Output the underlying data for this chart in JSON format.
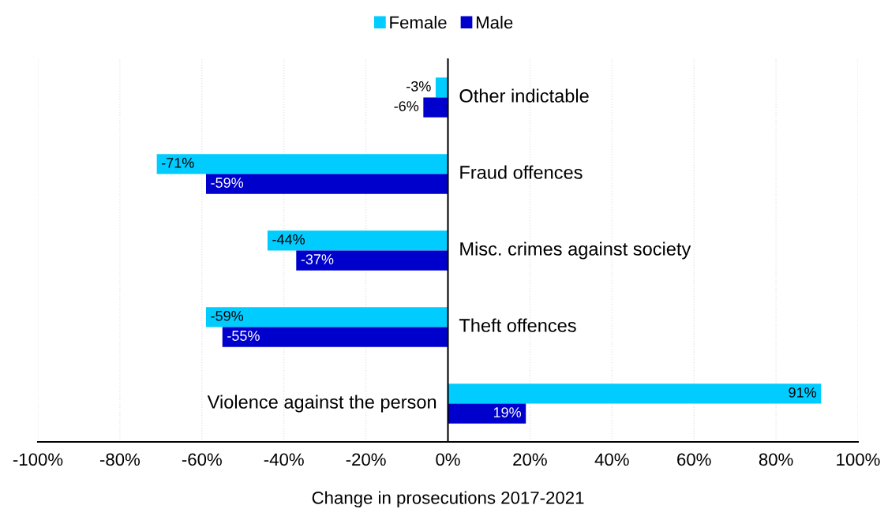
{
  "chart_data": {
    "type": "bar",
    "orientation": "horizontal",
    "xlabel": "Change in prosecutions 2017-2021",
    "categories": [
      "Other indictable",
      "Fraud offences",
      "Misc. crimes against society",
      "Theft offences",
      "Violence against the person"
    ],
    "series": [
      {
        "name": "Female",
        "color": "#00ccff",
        "values": [
          -3,
          -71,
          -44,
          -59,
          91
        ],
        "value_labels": [
          "-3%",
          "-71%",
          "-44%",
          "-59%",
          "91%"
        ]
      },
      {
        "name": "Male",
        "color": "#0000cc",
        "values": [
          -6,
          -59,
          -37,
          -55,
          19
        ],
        "value_labels": [
          "-6%",
          "-59%",
          "-37%",
          "-55%",
          "19%"
        ]
      }
    ],
    "xlim": [
      -100,
      100
    ],
    "xticks": [
      {
        "value": -100,
        "label": "-100%"
      },
      {
        "value": -80,
        "label": "-80%"
      },
      {
        "value": -60,
        "label": "-60%"
      },
      {
        "value": -40,
        "label": "-40%"
      },
      {
        "value": -20,
        "label": "-20%"
      },
      {
        "value": 0,
        "label": "0%"
      },
      {
        "value": 20,
        "label": "20%"
      },
      {
        "value": 40,
        "label": "40%"
      },
      {
        "value": 60,
        "label": "60%"
      },
      {
        "value": 80,
        "label": "80%"
      },
      {
        "value": 100,
        "label": "100%"
      }
    ],
    "grid": "x",
    "legend": "top"
  }
}
